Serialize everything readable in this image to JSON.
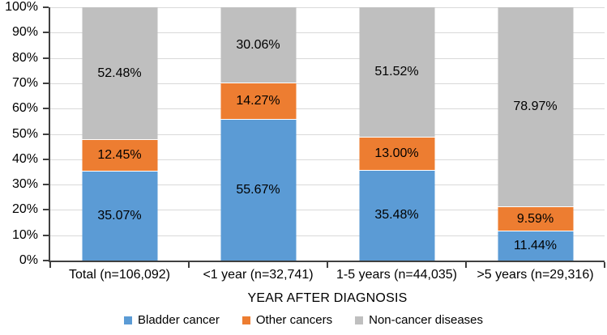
{
  "chart_data": {
    "type": "bar",
    "stacked": true,
    "title": "",
    "xlabel": "YEAR AFTER DIAGNOSIS",
    "ylabel": "",
    "ylim": [
      0,
      100
    ],
    "ytick_step": 10,
    "ytick_labels": [
      "0%",
      "10%",
      "20%",
      "30%",
      "40%",
      "50%",
      "60%",
      "70%",
      "80%",
      "90%",
      "100%"
    ],
    "grid": true,
    "legend_position": "bottom",
    "categories": [
      "Total (n=106,092)",
      "<1 year (n=32,741)",
      "1-5 years (n=44,035)",
      ">5 years (n=29,316)"
    ],
    "series": [
      {
        "name": "Bladder cancer",
        "color": "#5B9BD5",
        "values": [
          35.07,
          55.67,
          35.48,
          11.44
        ]
      },
      {
        "name": "Other cancers",
        "color": "#ED7D31",
        "values": [
          12.45,
          14.27,
          13.0,
          9.59
        ]
      },
      {
        "name": "Non-cancer diseases",
        "color": "#BFBFBF",
        "values": [
          52.48,
          30.06,
          51.52,
          78.97
        ]
      }
    ],
    "colors": {
      "gridline": "#D9D9D9",
      "axis": "#404040",
      "label": "#000000",
      "background": "#FFFFFF"
    }
  }
}
